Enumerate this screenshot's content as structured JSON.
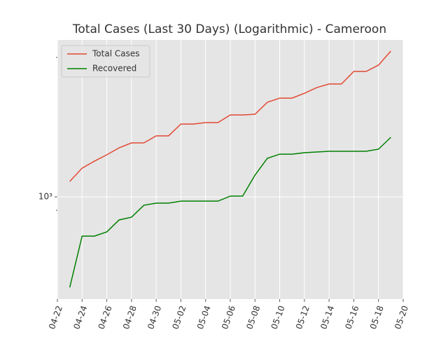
{
  "chart_data": {
    "type": "line",
    "title": "Total Cases (Last 30 Days) (Logarithmic) - Cameroon",
    "x": [
      "04-23",
      "04-24",
      "04-25",
      "04-26",
      "04-27",
      "04-28",
      "04-29",
      "04-30",
      "05-01",
      "05-02",
      "05-03",
      "05-04",
      "05-05",
      "05-06",
      "05-07",
      "05-08",
      "05-09",
      "05-10",
      "05-11",
      "05-12",
      "05-13",
      "05-14",
      "05-15",
      "05-16",
      "05-17",
      "05-18",
      "05-19"
    ],
    "series": [
      {
        "name": "Total Cases",
        "color": "#e24a33",
        "values": [
          1129,
          1254,
          1325,
          1393,
          1472,
          1530,
          1530,
          1617,
          1617,
          1775,
          1775,
          1795,
          1795,
          1906,
          1906,
          1917,
          2107,
          2177,
          2177,
          2262,
          2365,
          2433,
          2433,
          2686,
          2686,
          2823,
          3154
        ]
      },
      {
        "name": "Recovered",
        "color": "#008000",
        "values": [
          490,
          734,
          734,
          759,
          834,
          852,
          936,
          952,
          952,
          967,
          967,
          967,
          967,
          1006,
          1006,
          1187,
          1355,
          1400,
          1400,
          1416,
          1424,
          1432,
          1432,
          1432,
          1432,
          1456,
          1599
        ]
      }
    ],
    "xlim": [
      "04-22",
      "05-20"
    ],
    "xticks": [
      "04-22",
      "04-24",
      "04-26",
      "04-28",
      "04-30",
      "05-02",
      "05-04",
      "05-06",
      "05-08",
      "05-10",
      "05-12",
      "05-14",
      "05-16",
      "05-18",
      "05-20"
    ],
    "ylim": [
      447,
      3443
    ],
    "yticks": [
      {
        "value": 1000,
        "label": "10³"
      }
    ],
    "yminorticks": [
      900,
      3000
    ],
    "log_y": true,
    "grid": true,
    "legend": "upper left"
  }
}
